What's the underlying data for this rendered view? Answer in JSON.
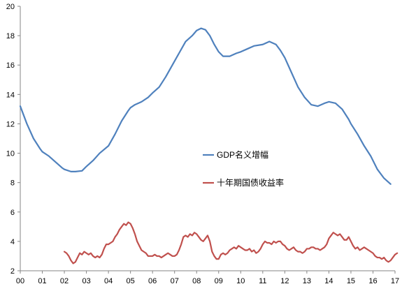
{
  "chart_data": {
    "type": "line",
    "title": "",
    "xlabel": "",
    "ylabel": "",
    "xlim": [
      0,
      17
    ],
    "ylim": [
      2,
      20
    ],
    "y_ticks": [
      "2",
      "4",
      "6",
      "8",
      "10",
      "12",
      "14",
      "16",
      "18",
      "20"
    ],
    "x_ticks": [
      "00",
      "01",
      "02",
      "03",
      "04",
      "05",
      "06",
      "07",
      "08",
      "09",
      "10",
      "11",
      "12",
      "13",
      "14",
      "15",
      "16",
      "17"
    ],
    "grid": false,
    "legend_position": "center-right",
    "series": [
      {
        "name": "GDP名义增幅",
        "color": "#4F81BD",
        "x": [
          0,
          0.3,
          0.6,
          0.9,
          1.0,
          1.3,
          1.6,
          1.9,
          2.0,
          2.3,
          2.5,
          2.8,
          3.0,
          3.3,
          3.6,
          4.0,
          4.3,
          4.6,
          4.9,
          5.0,
          5.2,
          5.5,
          5.8,
          6.0,
          6.3,
          6.6,
          6.9,
          7.2,
          7.5,
          7.8,
          8.0,
          8.2,
          8.4,
          8.6,
          8.8,
          9.0,
          9.2,
          9.5,
          9.8,
          10.0,
          10.3,
          10.6,
          11.0,
          11.3,
          11.6,
          11.8,
          12.0,
          12.3,
          12.6,
          12.9,
          13.2,
          13.5,
          13.8,
          14.0,
          14.3,
          14.6,
          14.9,
          15.0,
          15.3,
          15.6,
          15.9,
          16.2,
          16.5,
          16.8
        ],
        "values": [
          13.2,
          12.0,
          11.0,
          10.3,
          10.1,
          9.8,
          9.4,
          9.0,
          8.9,
          8.75,
          8.75,
          8.8,
          9.1,
          9.5,
          10.0,
          10.5,
          11.3,
          12.2,
          12.9,
          13.1,
          13.3,
          13.5,
          13.8,
          14.1,
          14.5,
          15.2,
          16.0,
          16.8,
          17.6,
          18.0,
          18.35,
          18.5,
          18.4,
          18.0,
          17.4,
          16.9,
          16.6,
          16.6,
          16.8,
          16.9,
          17.1,
          17.3,
          17.4,
          17.6,
          17.4,
          17.0,
          16.5,
          15.5,
          14.5,
          13.8,
          13.3,
          13.2,
          13.4,
          13.5,
          13.4,
          13.0,
          12.3,
          12.0,
          11.3,
          10.5,
          9.8,
          8.9,
          8.3,
          7.9
        ]
      },
      {
        "name": "十年期国债收益率",
        "color": "#C0504D",
        "x": [
          2.0,
          2.1,
          2.2,
          2.3,
          2.4,
          2.5,
          2.6,
          2.7,
          2.8,
          2.9,
          3.0,
          3.1,
          3.2,
          3.3,
          3.4,
          3.5,
          3.6,
          3.7,
          3.8,
          3.9,
          4.0,
          4.1,
          4.2,
          4.3,
          4.4,
          4.5,
          4.6,
          4.7,
          4.8,
          4.9,
          5.0,
          5.1,
          5.2,
          5.3,
          5.4,
          5.5,
          5.6,
          5.7,
          5.8,
          5.9,
          6.0,
          6.1,
          6.2,
          6.3,
          6.4,
          6.5,
          6.6,
          6.7,
          6.8,
          6.9,
          7.0,
          7.1,
          7.2,
          7.3,
          7.4,
          7.5,
          7.6,
          7.7,
          7.8,
          7.9,
          8.0,
          8.1,
          8.2,
          8.3,
          8.4,
          8.5,
          8.6,
          8.7,
          8.8,
          8.9,
          9.0,
          9.1,
          9.2,
          9.3,
          9.4,
          9.5,
          9.6,
          9.7,
          9.8,
          9.9,
          10.0,
          10.1,
          10.2,
          10.3,
          10.4,
          10.5,
          10.6,
          10.7,
          10.8,
          10.9,
          11.0,
          11.1,
          11.2,
          11.3,
          11.4,
          11.5,
          11.6,
          11.7,
          11.8,
          11.9,
          12.0,
          12.1,
          12.2,
          12.3,
          12.4,
          12.5,
          12.6,
          12.7,
          12.8,
          12.9,
          13.0,
          13.1,
          13.2,
          13.3,
          13.4,
          13.5,
          13.6,
          13.7,
          13.8,
          13.9,
          14.0,
          14.1,
          14.2,
          14.3,
          14.4,
          14.5,
          14.6,
          14.7,
          14.8,
          14.9,
          15.0,
          15.1,
          15.2,
          15.3,
          15.4,
          15.5,
          15.6,
          15.7,
          15.8,
          15.9,
          16.0,
          16.1,
          16.2,
          16.3,
          16.4,
          16.5,
          16.6,
          16.7,
          16.8,
          16.9,
          17.0,
          17.1
        ],
        "values": [
          3.3,
          3.2,
          3.0,
          2.7,
          2.5,
          2.6,
          2.9,
          3.2,
          3.1,
          3.3,
          3.2,
          3.1,
          3.2,
          3.0,
          2.9,
          3.0,
          2.9,
          3.1,
          3.5,
          3.8,
          3.8,
          3.9,
          4.0,
          4.3,
          4.5,
          4.8,
          5.0,
          5.2,
          5.1,
          5.3,
          5.2,
          4.9,
          4.5,
          4.0,
          3.7,
          3.4,
          3.3,
          3.2,
          3.0,
          3.0,
          3.0,
          3.1,
          3.0,
          3.0,
          2.9,
          3.0,
          3.1,
          3.2,
          3.1,
          3.0,
          3.0,
          3.1,
          3.4,
          3.8,
          4.3,
          4.4,
          4.3,
          4.5,
          4.4,
          4.6,
          4.5,
          4.3,
          4.1,
          4.0,
          4.2,
          4.4,
          4.0,
          3.3,
          3.0,
          2.8,
          2.8,
          3.1,
          3.2,
          3.1,
          3.2,
          3.4,
          3.5,
          3.6,
          3.5,
          3.7,
          3.6,
          3.5,
          3.4,
          3.4,
          3.5,
          3.3,
          3.4,
          3.2,
          3.3,
          3.5,
          3.8,
          4.0,
          3.9,
          3.9,
          3.8,
          4.0,
          3.9,
          4.0,
          4.0,
          3.8,
          3.7,
          3.5,
          3.4,
          3.5,
          3.6,
          3.4,
          3.3,
          3.3,
          3.2,
          3.3,
          3.5,
          3.5,
          3.6,
          3.6,
          3.5,
          3.5,
          3.4,
          3.5,
          3.6,
          3.8,
          4.2,
          4.4,
          4.6,
          4.5,
          4.4,
          4.5,
          4.3,
          4.1,
          4.1,
          4.3,
          4.0,
          3.7,
          3.5,
          3.6,
          3.4,
          3.5,
          3.6,
          3.5,
          3.4,
          3.3,
          3.2,
          3.0,
          2.9,
          2.9,
          2.8,
          2.9,
          2.7,
          2.6,
          2.7,
          2.9,
          3.1,
          3.2
        ]
      }
    ]
  }
}
